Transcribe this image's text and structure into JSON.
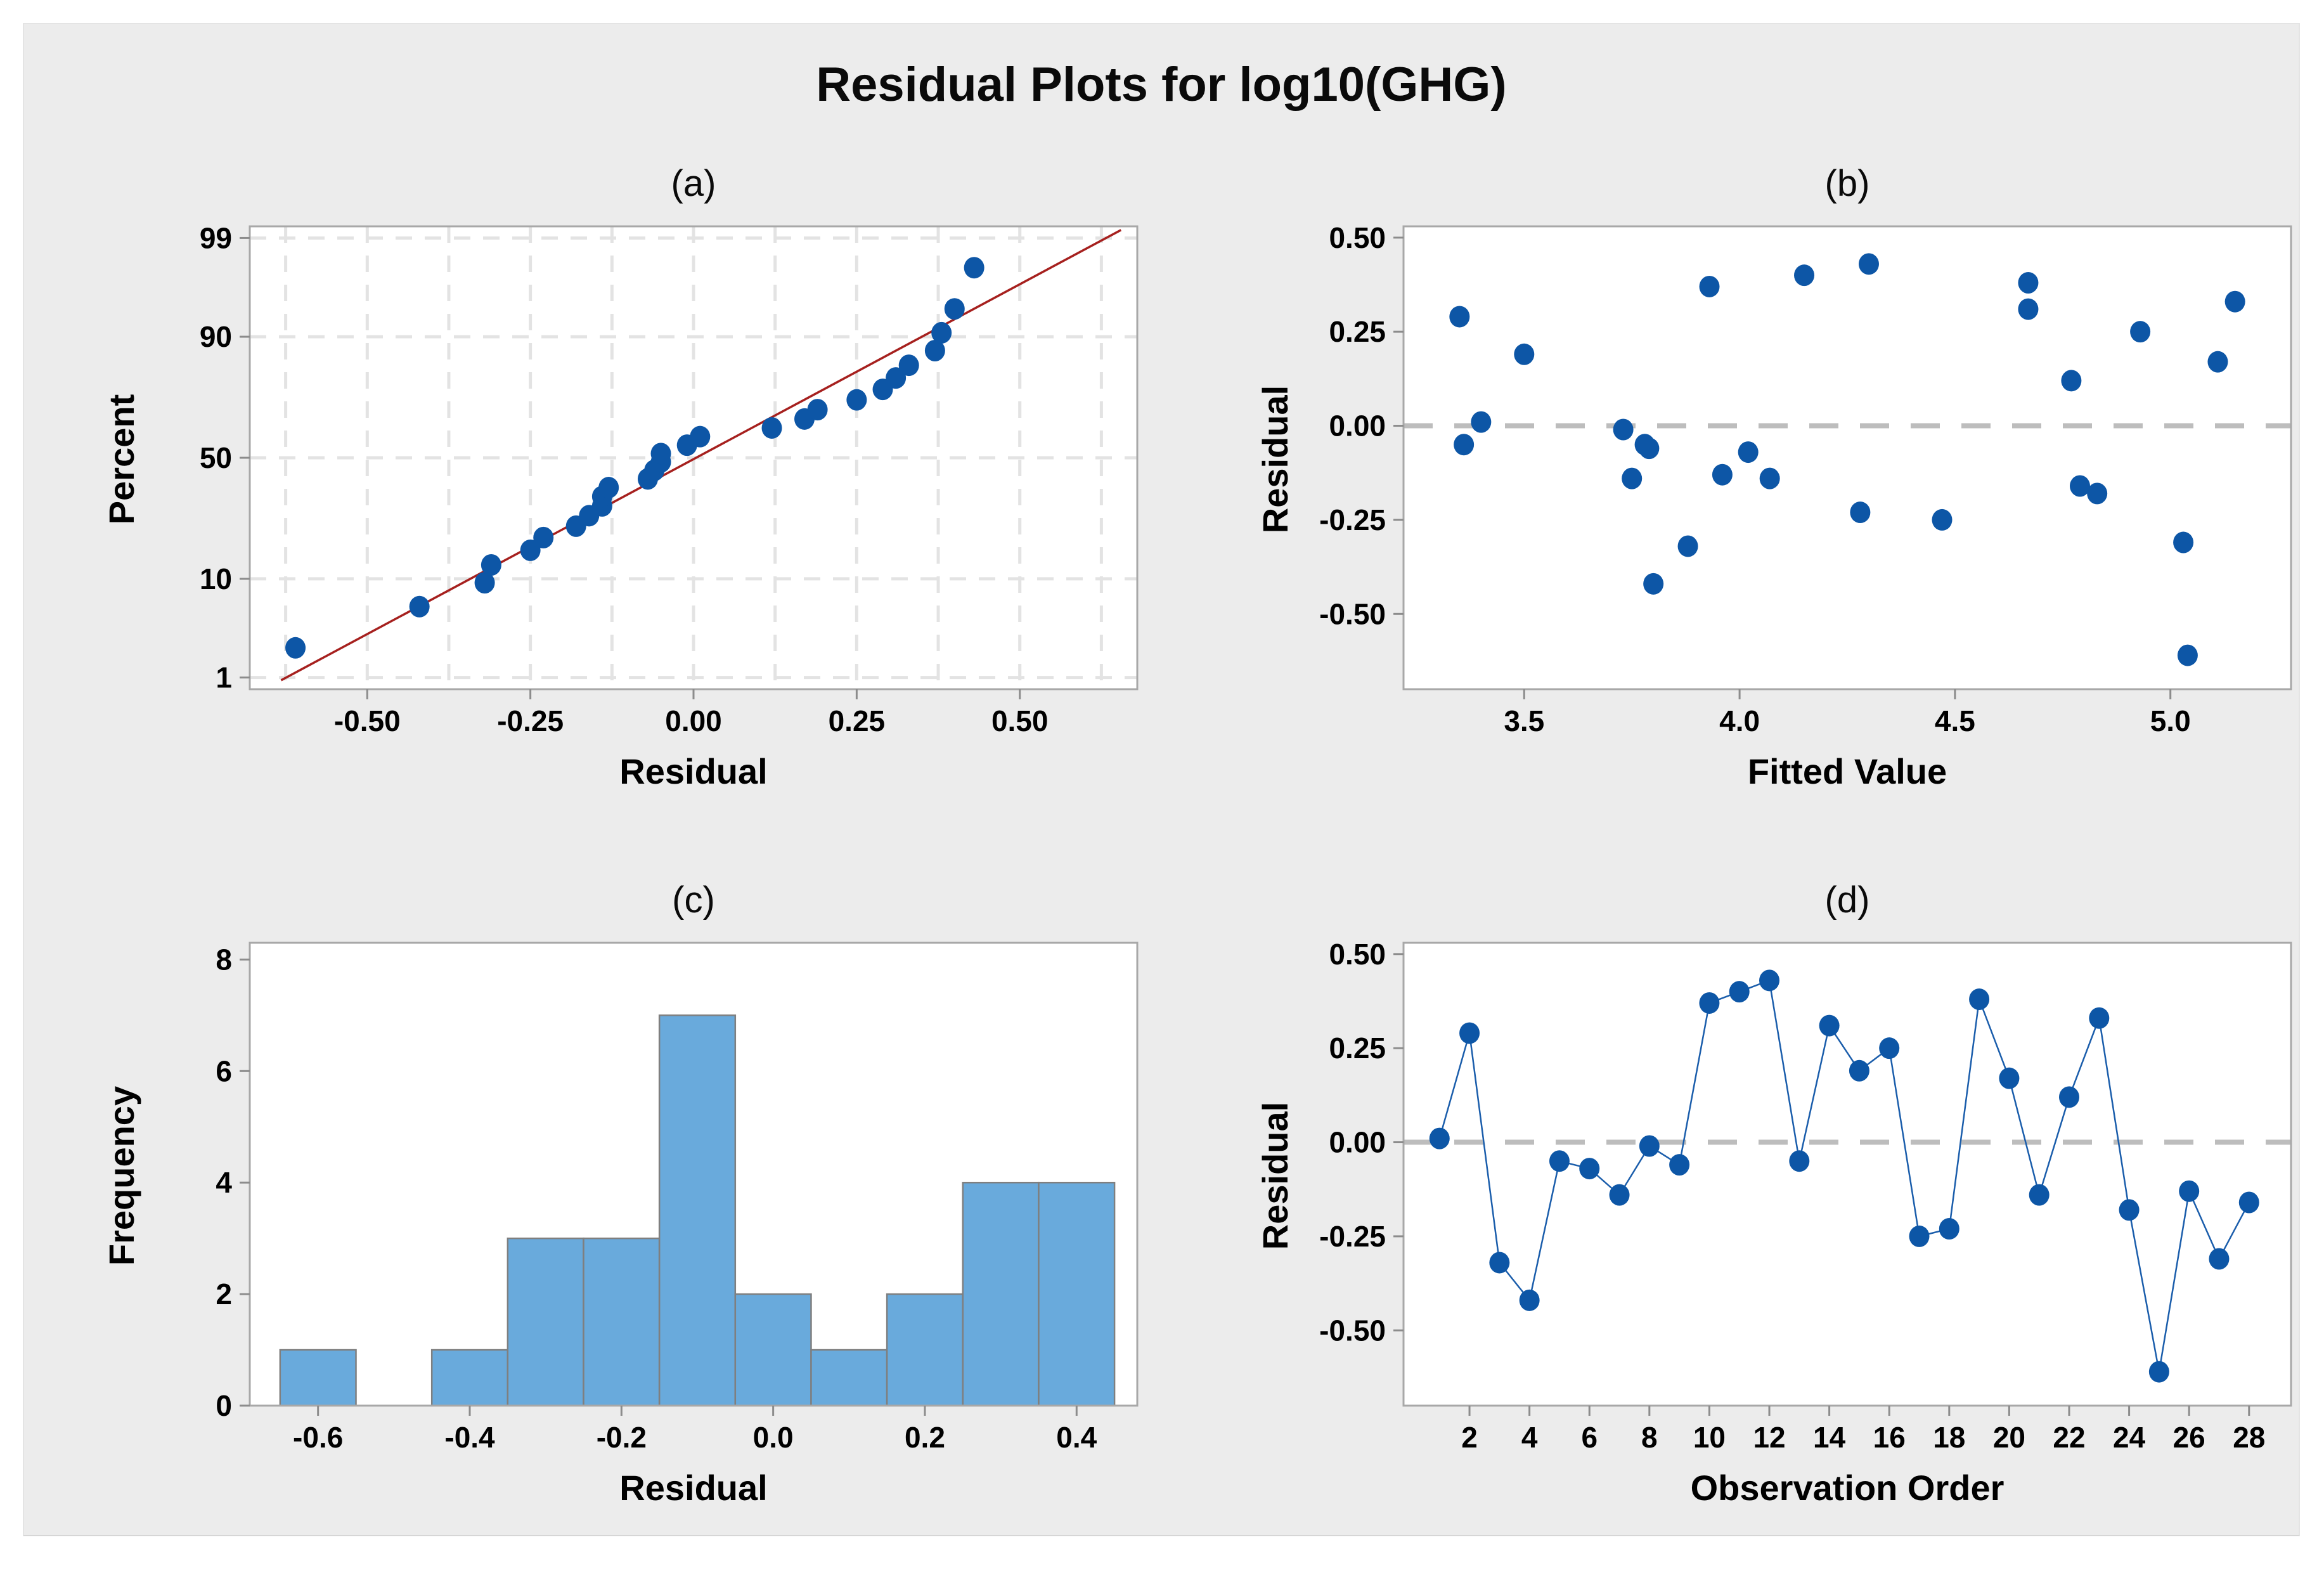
{
  "title": "Residual Plots for log10(GHG)",
  "colors": {
    "panel_bg": "#ECECEC",
    "plot_bg": "#FFFFFF",
    "plot_border": "#A8A8A8",
    "grid": "#E3E3E3",
    "zero_line": "#BDBDBD",
    "tick": "#8C8C8C",
    "point_blue": "#0D56A6",
    "connect_blue": "#1A5DAB",
    "fit_line_red": "#A6201E",
    "bar_fill": "#69AADC",
    "bar_border": "#7F7F7F",
    "text": "#000000"
  },
  "chart_data": [
    {
      "id": "a",
      "type": "scatter",
      "subtype": "normal_probability",
      "panel_label": "(a)",
      "xlabel": "Residual",
      "ylabel": "Percent",
      "xlim": [
        -0.68,
        0.68
      ],
      "zlim": [
        -2.45,
        2.45
      ],
      "grid_x": {
        "start": -0.625,
        "end": 0.625,
        "step": 0.125
      },
      "x_ticks": [
        {
          "v": -0.5,
          "label": "-0.50"
        },
        {
          "v": -0.25,
          "label": "-0.25"
        },
        {
          "v": 0.0,
          "label": "0.00"
        },
        {
          "v": 0.25,
          "label": "0.25"
        },
        {
          "v": 0.5,
          "label": "0.50"
        }
      ],
      "y_percent_ticks": [
        {
          "p": 1,
          "label": "1"
        },
        {
          "p": 10,
          "label": "10"
        },
        {
          "p": 50,
          "label": "50"
        },
        {
          "p": 90,
          "label": "90"
        },
        {
          "p": 99,
          "label": "99"
        }
      ],
      "fit_line": {
        "mean": 0.004,
        "sd": 0.27,
        "x1": -0.632,
        "x2": 0.655
      },
      "points": [
        {
          "x": -0.61,
          "p": 2.21
        },
        {
          "x": -0.42,
          "p": 5.75
        },
        {
          "x": -0.32,
          "p": 9.29
        },
        {
          "x": -0.31,
          "p": 12.83
        },
        {
          "x": -0.25,
          "p": 16.37
        },
        {
          "x": -0.23,
          "p": 19.91
        },
        {
          "x": -0.18,
          "p": 23.45
        },
        {
          "x": -0.16,
          "p": 26.99
        },
        {
          "x": -0.14,
          "p": 30.53
        },
        {
          "x": -0.14,
          "p": 34.07
        },
        {
          "x": -0.13,
          "p": 37.61
        },
        {
          "x": -0.07,
          "p": 41.15
        },
        {
          "x": -0.06,
          "p": 44.69
        },
        {
          "x": -0.05,
          "p": 48.23
        },
        {
          "x": -0.05,
          "p": 51.77
        },
        {
          "x": -0.01,
          "p": 55.31
        },
        {
          "x": 0.01,
          "p": 58.85
        },
        {
          "x": 0.12,
          "p": 62.39
        },
        {
          "x": 0.17,
          "p": 65.93
        },
        {
          "x": 0.19,
          "p": 69.47
        },
        {
          "x": 0.25,
          "p": 73.01
        },
        {
          "x": 0.29,
          "p": 76.55
        },
        {
          "x": 0.31,
          "p": 80.09
        },
        {
          "x": 0.33,
          "p": 83.63
        },
        {
          "x": 0.37,
          "p": 87.17
        },
        {
          "x": 0.38,
          "p": 90.71
        },
        {
          "x": 0.4,
          "p": 94.25
        },
        {
          "x": 0.43,
          "p": 97.79
        }
      ]
    },
    {
      "id": "b",
      "type": "scatter",
      "subtype": "residual_vs_fitted",
      "panel_label": "(b)",
      "xlabel": "Fitted Value",
      "ylabel": "Residual",
      "xlim": [
        3.22,
        5.28
      ],
      "ylim": [
        -0.7,
        0.53
      ],
      "zero_line": 0,
      "x_ticks": [
        {
          "v": 3.5,
          "label": "3.5"
        },
        {
          "v": 4.0,
          "label": "4.0"
        },
        {
          "v": 4.5,
          "label": "4.5"
        },
        {
          "v": 5.0,
          "label": "5.0"
        }
      ],
      "y_ticks": [
        {
          "v": 0.5,
          "label": "0.50"
        },
        {
          "v": 0.25,
          "label": "0.25"
        },
        {
          "v": 0.0,
          "label": "0.00"
        },
        {
          "v": -0.25,
          "label": "-0.25"
        },
        {
          "v": -0.5,
          "label": "-0.50"
        }
      ],
      "points": [
        {
          "x": 3.4,
          "y": 0.01
        },
        {
          "x": 3.35,
          "y": 0.29
        },
        {
          "x": 3.88,
          "y": -0.32
        },
        {
          "x": 3.8,
          "y": -0.42
        },
        {
          "x": 3.36,
          "y": -0.05
        },
        {
          "x": 4.02,
          "y": -0.07
        },
        {
          "x": 3.75,
          "y": -0.14
        },
        {
          "x": 3.73,
          "y": -0.01
        },
        {
          "x": 3.79,
          "y": -0.06
        },
        {
          "x": 3.93,
          "y": 0.37
        },
        {
          "x": 4.15,
          "y": 0.4
        },
        {
          "x": 4.3,
          "y": 0.43
        },
        {
          "x": 3.78,
          "y": -0.05
        },
        {
          "x": 4.67,
          "y": 0.31
        },
        {
          "x": 3.5,
          "y": 0.19
        },
        {
          "x": 4.93,
          "y": 0.25
        },
        {
          "x": 4.47,
          "y": -0.25
        },
        {
          "x": 4.28,
          "y": -0.23
        },
        {
          "x": 4.67,
          "y": 0.38
        },
        {
          "x": 5.11,
          "y": 0.17
        },
        {
          "x": 4.07,
          "y": -0.14
        },
        {
          "x": 4.77,
          "y": 0.12
        },
        {
          "x": 5.15,
          "y": 0.33
        },
        {
          "x": 4.83,
          "y": -0.18
        },
        {
          "x": 5.04,
          "y": -0.61
        },
        {
          "x": 3.96,
          "y": -0.13
        },
        {
          "x": 5.03,
          "y": -0.31
        },
        {
          "x": 4.79,
          "y": -0.16
        }
      ]
    },
    {
      "id": "c",
      "type": "bar",
      "subtype": "histogram",
      "panel_label": "(c)",
      "xlabel": "Residual",
      "ylabel": "Frequency",
      "xlim": [
        -0.69,
        0.48
      ],
      "ylim": [
        0,
        8.3
      ],
      "bin_width": 0.1,
      "bin_centers": [
        -0.6,
        -0.5,
        -0.4,
        -0.3,
        -0.2,
        -0.1,
        0.0,
        0.1,
        0.2,
        0.3,
        0.4
      ],
      "counts": [
        1,
        0,
        1,
        3,
        3,
        7,
        2,
        1,
        2,
        4,
        4
      ],
      "x_ticks": [
        {
          "v": -0.6,
          "label": "-0.6"
        },
        {
          "v": -0.4,
          "label": "-0.4"
        },
        {
          "v": -0.2,
          "label": "-0.2"
        },
        {
          "v": 0.0,
          "label": "0.0"
        },
        {
          "v": 0.2,
          "label": "0.2"
        },
        {
          "v": 0.4,
          "label": "0.4"
        }
      ],
      "y_ticks": [
        {
          "v": 0,
          "label": "0"
        },
        {
          "v": 2,
          "label": "2"
        },
        {
          "v": 4,
          "label": "4"
        },
        {
          "v": 6,
          "label": "6"
        },
        {
          "v": 8,
          "label": "8"
        }
      ]
    },
    {
      "id": "d",
      "type": "line",
      "subtype": "residual_vs_order",
      "panel_label": "(d)",
      "xlabel": "Observation Order",
      "ylabel": "Residual",
      "xlim": [
        -0.2,
        29.4
      ],
      "ylim": [
        -0.7,
        0.53
      ],
      "zero_line": 0,
      "x": [
        1,
        2,
        3,
        4,
        5,
        6,
        7,
        8,
        9,
        10,
        11,
        12,
        13,
        14,
        15,
        16,
        17,
        18,
        19,
        20,
        21,
        22,
        23,
        24,
        25,
        26,
        27,
        28
      ],
      "y": [
        0.01,
        0.29,
        -0.32,
        -0.42,
        -0.05,
        -0.07,
        -0.14,
        -0.01,
        -0.06,
        0.37,
        0.4,
        0.43,
        -0.05,
        0.31,
        0.19,
        0.25,
        -0.25,
        -0.23,
        0.38,
        0.17,
        -0.14,
        0.12,
        0.33,
        -0.18,
        -0.61,
        -0.13,
        -0.31,
        -0.16
      ],
      "x_ticks": [
        {
          "v": 2,
          "label": "2"
        },
        {
          "v": 4,
          "label": "4"
        },
        {
          "v": 6,
          "label": "6"
        },
        {
          "v": 8,
          "label": "8"
        },
        {
          "v": 10,
          "label": "10"
        },
        {
          "v": 12,
          "label": "12"
        },
        {
          "v": 14,
          "label": "14"
        },
        {
          "v": 16,
          "label": "16"
        },
        {
          "v": 18,
          "label": "18"
        },
        {
          "v": 20,
          "label": "20"
        },
        {
          "v": 22,
          "label": "22"
        },
        {
          "v": 24,
          "label": "24"
        },
        {
          "v": 26,
          "label": "26"
        },
        {
          "v": 28,
          "label": "28"
        }
      ],
      "y_ticks": [
        {
          "v": 0.5,
          "label": "0.50"
        },
        {
          "v": 0.25,
          "label": "0.25"
        },
        {
          "v": 0.0,
          "label": "0.00"
        },
        {
          "v": -0.25,
          "label": "-0.25"
        },
        {
          "v": -0.5,
          "label": "-0.50"
        }
      ]
    }
  ]
}
